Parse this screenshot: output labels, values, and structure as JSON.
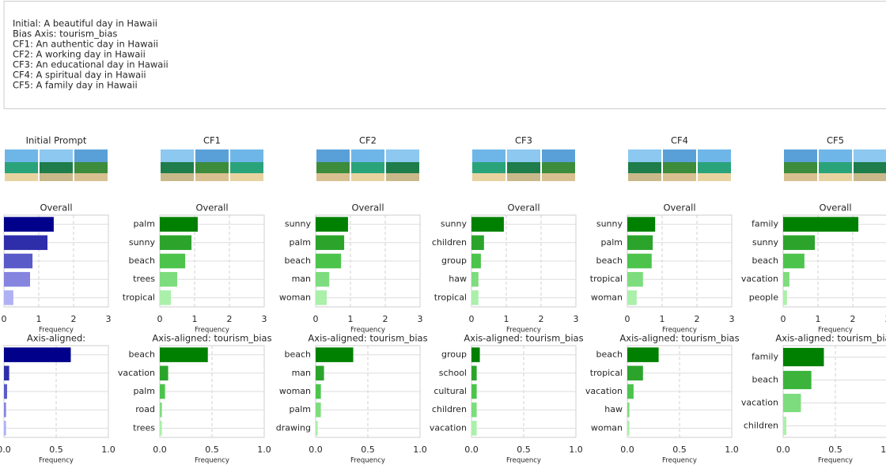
{
  "prompt_lines": [
    "Initial: A beautiful day in Hawaii",
    "Bias Axis: tourism_bias",
    "CF1: An authentic day in Hawaii",
    "CF2: A working day in Hawaii",
    "CF3: An educational day in Hawaii",
    "CF4: A spiritual day in Hawaii",
    "CF5: A family day in Hawaii"
  ],
  "column_titles": [
    "Initial Prompt",
    "CF1",
    "CF2",
    "CF3",
    "CF4",
    "CF5"
  ],
  "chart_data": [
    {
      "type": "bar",
      "title": "Overall",
      "xlabel": "Frequency",
      "categories": [
        null,
        null,
        null,
        null,
        null
      ],
      "values": [
        1.43,
        1.25,
        0.82,
        0.75,
        0.27
      ],
      "colors": [
        "#00008b",
        "#2e2eaa",
        "#5a5ac8",
        "#8585e0",
        "#b0b0f5"
      ],
      "xlim": [
        0,
        3
      ],
      "xticks": [
        0,
        1,
        2,
        3
      ],
      "grid": true
    },
    {
      "type": "bar",
      "title": "Axis-aligned:",
      "xlabel": "Frequency",
      "categories": [
        null,
        null,
        null,
        null,
        null
      ],
      "values": [
        0.64,
        0.05,
        0.03,
        0.02,
        0.02
      ],
      "colors": [
        "#00008b",
        "#2e2eaa",
        "#5a5ac8",
        "#8585e0",
        "#b0b0f5"
      ],
      "xlim": [
        0,
        1
      ],
      "xticks": [
        {
          "value": 0,
          "label": "0.0"
        },
        0.5,
        {
          "value": 1,
          "label": "1.0"
        }
      ],
      "grid": true
    },
    {
      "type": "bar",
      "title": "Overall",
      "xlabel": "Frequency",
      "categories": [
        "palm",
        "sunny",
        "beach",
        "trees",
        "tropical"
      ],
      "values": [
        1.09,
        0.91,
        0.73,
        0.5,
        0.32
      ],
      "colors": [
        "#008000",
        "#2ca42c",
        "#4cc44c",
        "#7ddc7d",
        "#aaf0aa"
      ],
      "xlim": [
        0,
        3
      ],
      "xticks": [
        0,
        1,
        2,
        3
      ],
      "grid": true
    },
    {
      "type": "bar",
      "title": "Axis-aligned: tourism_bias",
      "xlabel": "Frequency",
      "categories": [
        "beach",
        "vacation",
        "palm",
        "road",
        "trees"
      ],
      "values": [
        0.46,
        0.08,
        0.05,
        0.02,
        0.02
      ],
      "colors": [
        "#008000",
        "#2ca42c",
        "#4cc44c",
        "#7ddc7d",
        "#aaf0aa"
      ],
      "xlim": [
        0,
        1
      ],
      "xticks": [
        {
          "value": 0,
          "label": "0.0"
        },
        0.5,
        {
          "value": 1,
          "label": "1.0"
        }
      ],
      "grid": true
    },
    {
      "type": "bar",
      "title": "Overall",
      "xlabel": "Frequency",
      "categories": [
        "sunny",
        "palm",
        "beach",
        "man",
        "woman"
      ],
      "values": [
        0.93,
        0.82,
        0.73,
        0.39,
        0.32
      ],
      "colors": [
        "#008000",
        "#2ca42c",
        "#4cc44c",
        "#7ddc7d",
        "#aaf0aa"
      ],
      "xlim": [
        0,
        3
      ],
      "xticks": [
        0,
        1,
        2,
        3
      ],
      "grid": true
    },
    {
      "type": "bar",
      "title": "Axis-aligned: tourism_bias",
      "xlabel": "Frequency",
      "categories": [
        "beach",
        "man",
        "woman",
        "palm",
        "drawing"
      ],
      "values": [
        0.36,
        0.08,
        0.05,
        0.05,
        0.02
      ],
      "colors": [
        "#008000",
        "#2ca42c",
        "#4cc44c",
        "#7ddc7d",
        "#aaf0aa"
      ],
      "xlim": [
        0,
        1
      ],
      "xticks": [
        {
          "value": 0,
          "label": "0.0"
        },
        0.5,
        {
          "value": 1,
          "label": "1.0"
        }
      ],
      "grid": true
    },
    {
      "type": "bar",
      "title": "Overall",
      "xlabel": "Frequency",
      "categories": [
        "sunny",
        "children",
        "group",
        "haw",
        "tropical"
      ],
      "values": [
        0.93,
        0.36,
        0.27,
        0.2,
        0.2
      ],
      "colors": [
        "#008000",
        "#2ca42c",
        "#4cc44c",
        "#7ddc7d",
        "#aaf0aa"
      ],
      "xlim": [
        0,
        3
      ],
      "xticks": [
        0,
        1,
        2,
        3
      ],
      "grid": true
    },
    {
      "type": "bar",
      "title": "Axis-aligned: tourism_bias",
      "xlabel": "Frequency",
      "categories": [
        "group",
        "school",
        "cultural",
        "children",
        "vacation"
      ],
      "values": [
        0.08,
        0.05,
        0.05,
        0.05,
        0.05
      ],
      "colors": [
        "#008000",
        "#2ca42c",
        "#4cc44c",
        "#7ddc7d",
        "#aaf0aa"
      ],
      "xlim": [
        0,
        1
      ],
      "xticks": [
        {
          "value": 0,
          "label": "0.0"
        },
        0.5,
        {
          "value": 1,
          "label": "1.0"
        }
      ],
      "grid": true
    },
    {
      "type": "bar",
      "title": "Overall",
      "xlabel": "Frequency",
      "categories": [
        "sunny",
        "palm",
        "beach",
        "tropical",
        "woman"
      ],
      "values": [
        0.8,
        0.73,
        0.7,
        0.45,
        0.27
      ],
      "colors": [
        "#008000",
        "#2ca42c",
        "#4cc44c",
        "#7ddc7d",
        "#aaf0aa"
      ],
      "xlim": [
        0,
        3
      ],
      "xticks": [
        0,
        1,
        2,
        3
      ],
      "grid": true
    },
    {
      "type": "bar",
      "title": "Axis-aligned: tourism_bias",
      "xlabel": "Frequency",
      "categories": [
        "beach",
        "tropical",
        "vacation",
        "haw",
        "woman"
      ],
      "values": [
        0.3,
        0.15,
        0.06,
        0.02,
        0.02
      ],
      "colors": [
        "#008000",
        "#2ca42c",
        "#4cc44c",
        "#7ddc7d",
        "#aaf0aa"
      ],
      "xlim": [
        0,
        1
      ],
      "xticks": [
        {
          "value": 0,
          "label": "0.0"
        },
        0.5,
        {
          "value": 1,
          "label": "1.0"
        }
      ],
      "grid": true
    },
    {
      "type": "bar",
      "title": "Overall",
      "xlabel": "Frequency",
      "categories": [
        "family",
        "sunny",
        "beach",
        "vacation",
        "people"
      ],
      "values": [
        2.16,
        0.91,
        0.61,
        0.18,
        0.11
      ],
      "colors": [
        "#008000",
        "#2ca42c",
        "#4cc44c",
        "#7ddc7d",
        "#aaf0aa"
      ],
      "xlim": [
        0,
        3
      ],
      "xticks": [
        0,
        1,
        2,
        3
      ],
      "grid": true
    },
    {
      "type": "bar",
      "title": "Axis-aligned: tourism_bias",
      "xlabel": "Frequency",
      "categories": [
        "family",
        "beach",
        "vacation",
        "children"
      ],
      "values": [
        0.39,
        0.27,
        0.17,
        0.03
      ],
      "colors": [
        "#008000",
        "#3cb43c",
        "#7ddc7d",
        "#aaf0aa"
      ],
      "xlim": [
        0,
        1
      ],
      "xticks": [
        {
          "value": 0,
          "label": "0.0"
        },
        0.5,
        {
          "value": 1,
          "label": "1.0"
        }
      ],
      "grid": true
    }
  ]
}
